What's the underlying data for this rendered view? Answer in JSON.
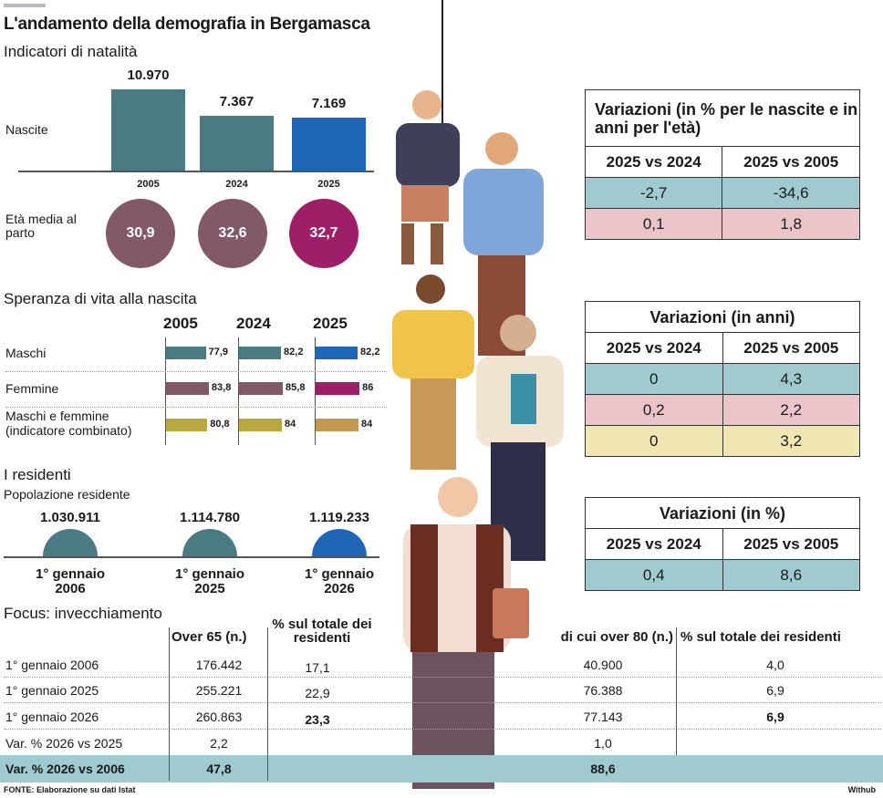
{
  "title": "L'andamento della demografia in Bergamasca",
  "colors": {
    "teal": "#4a7b85",
    "mauve": "#83596a",
    "blue": "#1e66b5",
    "magenta": "#9e1f68",
    "olive": "#b9a840",
    "tan": "#c29852",
    "table_teal": "#9fcbd0",
    "table_pink": "#ebc4ca",
    "table_yellow": "#efe6b2"
  },
  "natalita": {
    "heading": "Indicatori di natalità",
    "births_label": "Nascite",
    "age_label": "Età media al parto",
    "years": [
      "2005",
      "2024",
      "2025"
    ],
    "births_text": [
      "10.970",
      "7.367",
      "7.169"
    ],
    "age_text": [
      "30,9",
      "32,6",
      "32,7"
    ]
  },
  "speranza": {
    "heading": "Speranza di vita alla nascita",
    "years": [
      "2005",
      "2024",
      "2025"
    ],
    "rows": [
      {
        "label": "Maschi",
        "text": [
          "77,9",
          "82,2",
          "82,2"
        ]
      },
      {
        "label": "Femmine",
        "text": [
          "83,8",
          "85,8",
          "86"
        ]
      },
      {
        "label": "Maschi e femmine (indicatore combinato)",
        "text": [
          "80,8",
          "84",
          "84"
        ]
      }
    ]
  },
  "residenti": {
    "heading": "I residenti",
    "subheading": "Popolazione residente",
    "values_text": [
      "1.030.911",
      "1.114.780",
      "1.119.233"
    ],
    "dates": [
      "1° gennaio 2006",
      "1° gennaio 2025",
      "1° gennaio 2026"
    ]
  },
  "var1": {
    "title": "Variazioni (in % per le nascite e in anni per l'età)",
    "headers": [
      "2025 vs 2024",
      "2025 vs 2005"
    ],
    "rows": [
      [
        "-2,7",
        "-34,6"
      ],
      [
        "0,1",
        "1,8"
      ]
    ]
  },
  "var2": {
    "title": "Variazioni (in anni)",
    "headers": [
      "2025 vs 2024",
      "2025 vs 2005"
    ],
    "rows": [
      [
        "0",
        "4,3"
      ],
      [
        "0,2",
        "2,2"
      ],
      [
        "0",
        "3,2"
      ]
    ]
  },
  "var3": {
    "title": "Variazioni (in %)",
    "headers": [
      "2025 vs 2024",
      "2025 vs 2005"
    ],
    "rows": [
      [
        "0,4",
        "8,6"
      ]
    ]
  },
  "focus": {
    "heading": "Focus: invecchiamento",
    "headers": [
      "Over 65 (n.)",
      "% sul totale dei residenti",
      "di cui over 80 (n.)",
      "% sul totale dei residenti"
    ],
    "rows": [
      [
        "1° gennaio 2006",
        "176.442",
        "17,1",
        "40.900",
        "4,0"
      ],
      [
        "1° gennaio 2025",
        "255.221",
        "22,9",
        "76.388",
        "6,9"
      ],
      [
        "1° gennaio 2026",
        "260.863",
        "23,3",
        "77.143",
        "6,9"
      ],
      [
        "Var. % 2026 vs 2025",
        "2,2",
        "",
        "1,0",
        ""
      ],
      [
        "Var. % 2026 vs 2006",
        "47,8",
        "",
        "88,6",
        ""
      ]
    ]
  },
  "footer": {
    "source": "FONTE: Elaborazione su dati Istat",
    "credit": "Withub"
  },
  "chart_data": [
    {
      "type": "bar",
      "title": "Indicatori di natalità",
      "categories": [
        "2005",
        "2024",
        "2025"
      ],
      "series": [
        {
          "name": "Nascite",
          "values": [
            10970,
            7367,
            7169
          ]
        }
      ]
    },
    {
      "type": "bubble",
      "categories": [
        "2005",
        "2024",
        "2025"
      ],
      "series": [
        {
          "name": "Età media al parto",
          "values": [
            30.9,
            32.6,
            32.7
          ]
        }
      ]
    },
    {
      "type": "bar",
      "orientation": "horizontal",
      "title": "Speranza di vita alla nascita",
      "categories": [
        "2005",
        "2024",
        "2025"
      ],
      "series": [
        {
          "name": "Maschi",
          "values": [
            77.9,
            82.2,
            82.2
          ]
        },
        {
          "name": "Femmine",
          "values": [
            83.8,
            85.8,
            86
          ]
        },
        {
          "name": "Maschi e femmine (indicatore combinato)",
          "values": [
            80.8,
            84,
            84
          ]
        }
      ]
    },
    {
      "type": "semicircle",
      "title": "Popolazione residente",
      "categories": [
        "1° gennaio 2006",
        "1° gennaio 2025",
        "1° gennaio 2026"
      ],
      "values": [
        1030911,
        1114780,
        1119233
      ]
    }
  ]
}
